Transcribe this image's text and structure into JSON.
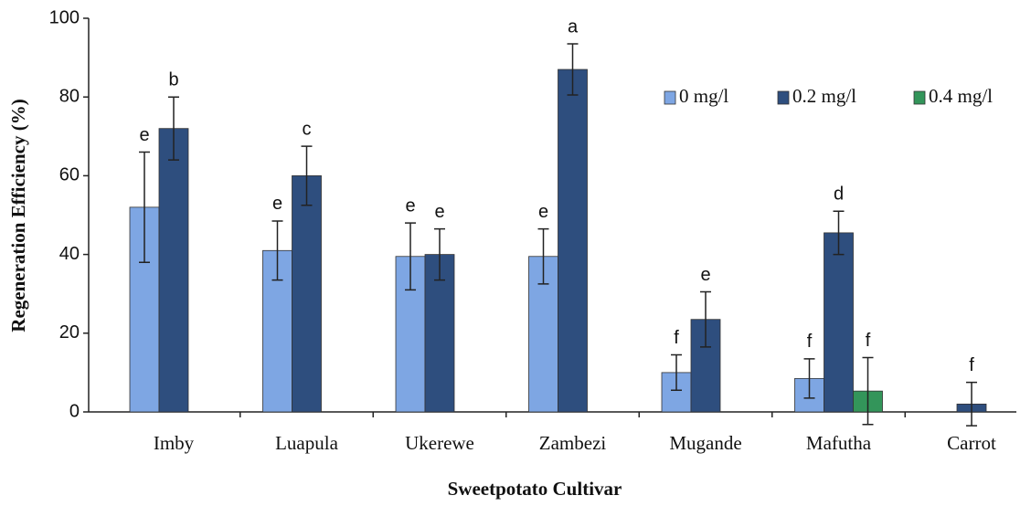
{
  "chart_data": {
    "type": "bar",
    "x_label": "Sweetpotato Cultivar",
    "y_label": "Regeneration Efficiency (%)",
    "categories": [
      "Imby",
      "Luapula",
      "Ukerewe",
      "Zambezi",
      "Mugande",
      "Mafutha",
      "Carrot"
    ],
    "series": [
      {
        "name": "0 mg/l",
        "color": "#7ea6e3",
        "values": [
          52,
          41,
          39.5,
          39.5,
          10,
          8.5,
          null
        ],
        "errors": [
          14,
          7.5,
          8.5,
          7,
          4.5,
          5,
          null
        ],
        "letters": [
          "e",
          "e",
          "e",
          "e",
          "f",
          "f",
          null
        ]
      },
      {
        "name": "0.2 mg/l",
        "color": "#2e4e7e",
        "values": [
          72,
          60,
          40,
          87,
          23.5,
          45.5,
          2
        ],
        "errors": [
          8,
          7.5,
          6.5,
          6.5,
          7,
          5.5,
          5.5
        ],
        "letters": [
          "b",
          "c",
          "e",
          "a",
          "e",
          "d",
          "f"
        ]
      },
      {
        "name": "0.4 mg/l",
        "color": "#33955a",
        "values": [
          null,
          null,
          null,
          null,
          null,
          5.3,
          null
        ],
        "errors": [
          null,
          null,
          null,
          null,
          null,
          8.5,
          null
        ],
        "letters": [
          null,
          null,
          null,
          null,
          null,
          "f",
          null
        ]
      }
    ],
    "ylim": [
      0,
      100
    ],
    "yticks": [
      0,
      20,
      40,
      60,
      80,
      100
    ],
    "grid": false,
    "legend": "upper right"
  }
}
